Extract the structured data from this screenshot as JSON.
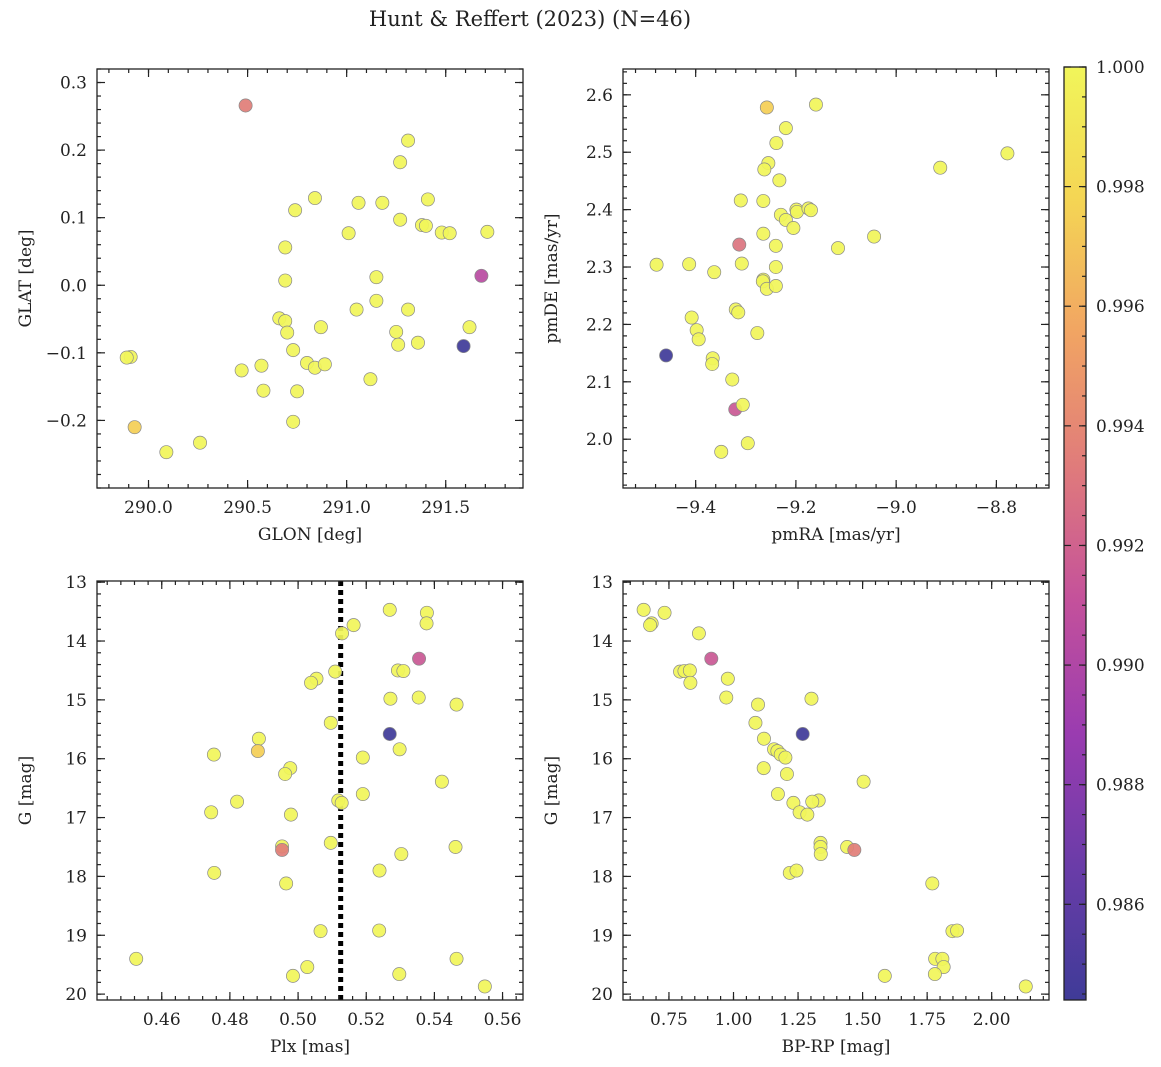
{
  "chart_data": {
    "type": "scatter",
    "title": "Hunt & Reffert (2023) (N=46)",
    "colorbar": {
      "range": [
        0.9844,
        1.0
      ],
      "ticks": [
        "1.000",
        "0.998",
        "0.996",
        "0.994",
        "0.992",
        "0.990",
        "0.988",
        "0.986"
      ],
      "tick_values": [
        1.0,
        0.998,
        0.996,
        0.994,
        0.992,
        0.99,
        0.988,
        0.986
      ],
      "colormap": "plasma",
      "colors": [
        "#3f3b98",
        "#6a3ca8",
        "#9a3cb0",
        "#c4519b",
        "#e07b7b",
        "#f1a463",
        "#f4d554",
        "#f1f55a"
      ]
    },
    "panels": [
      {
        "xlabel": "GLON [deg]",
        "ylabel": "GLAT [deg]",
        "xlim": [
          289.74,
          291.89
        ],
        "ylim": [
          -0.3,
          0.32
        ],
        "xticks": [
          290.0,
          290.5,
          291.0,
          291.5
        ],
        "xticklabels": [
          "290.0",
          "290.5",
          "291.0",
          "291.5"
        ],
        "yticks": [
          -0.2,
          -0.1,
          0.0,
          0.1,
          0.2,
          0.3
        ],
        "yticklabels": [
          "−0.2",
          "−0.1",
          "0.0",
          "0.1",
          "0.2",
          "0.3"
        ],
        "vline": null,
        "points": [
          [
            290.49,
            0.266,
            0.9935
          ],
          [
            289.93,
            -0.21,
            0.9975
          ],
          [
            289.91,
            -0.106,
            1.0
          ],
          [
            289.89,
            -0.107,
            1.0
          ],
          [
            290.09,
            -0.247,
            1.0
          ],
          [
            290.26,
            -0.233,
            1.0
          ],
          [
            290.47,
            -0.126,
            1.0
          ],
          [
            290.57,
            -0.119,
            1.0
          ],
          [
            290.58,
            -0.156,
            1.0
          ],
          [
            290.66,
            -0.049,
            1.0
          ],
          [
            290.69,
            -0.053,
            1.0
          ],
          [
            290.7,
            -0.07,
            1.0
          ],
          [
            290.69,
            0.056,
            1.0
          ],
          [
            290.69,
            0.007,
            1.0
          ],
          [
            290.74,
            0.111,
            1.0
          ],
          [
            290.73,
            -0.096,
            1.0
          ],
          [
            290.73,
            -0.202,
            1.0
          ],
          [
            290.75,
            -0.157,
            1.0
          ],
          [
            290.8,
            -0.115,
            1.0
          ],
          [
            290.84,
            0.129,
            1.0
          ],
          [
            290.84,
            -0.122,
            1.0
          ],
          [
            290.87,
            -0.062,
            1.0
          ],
          [
            290.89,
            -0.117,
            1.0
          ],
          [
            291.01,
            0.077,
            1.0
          ],
          [
            291.05,
            -0.036,
            1.0
          ],
          [
            291.06,
            0.122,
            1.0
          ],
          [
            291.12,
            -0.139,
            1.0
          ],
          [
            291.15,
            0.012,
            1.0
          ],
          [
            291.15,
            -0.023,
            1.0
          ],
          [
            291.18,
            0.122,
            1.0
          ],
          [
            291.25,
            -0.069,
            1.0
          ],
          [
            291.26,
            -0.088,
            1.0
          ],
          [
            291.27,
            0.182,
            1.0
          ],
          [
            291.27,
            0.097,
            1.0
          ],
          [
            291.31,
            0.214,
            1.0
          ],
          [
            291.31,
            -0.036,
            1.0
          ],
          [
            291.36,
            -0.085,
            1.0
          ],
          [
            291.38,
            0.089,
            1.0
          ],
          [
            291.41,
            0.127,
            1.0
          ],
          [
            291.4,
            0.088,
            1.0
          ],
          [
            291.48,
            0.078,
            1.0
          ],
          [
            291.52,
            0.077,
            1.0
          ],
          [
            291.59,
            -0.09,
            0.9845
          ],
          [
            291.62,
            -0.062,
            1.0
          ],
          [
            291.68,
            0.014,
            0.9905
          ],
          [
            291.71,
            0.079,
            1.0
          ]
        ]
      },
      {
        "xlabel": "pmRA [mas/yr]",
        "ylabel": "pmDE [mas/yr]",
        "xlim": [
          -9.545,
          -8.695
        ],
        "ylim": [
          1.915,
          2.645
        ],
        "xticks": [
          -9.4,
          -9.2,
          -9.0,
          -8.8
        ],
        "xticklabels": [
          "−9.4",
          "−9.2",
          "−9.0",
          "−8.8"
        ],
        "yticks": [
          2.0,
          2.1,
          2.2,
          2.3,
          2.4,
          2.5,
          2.6
        ],
        "yticklabels": [
          "2.0",
          "2.1",
          "2.2",
          "2.3",
          "2.4",
          "2.5",
          "2.6"
        ],
        "vline": null,
        "points": [
          [
            -9.258,
            2.578,
            0.9975
          ],
          [
            -9.16,
            2.583,
            1.0
          ],
          [
            -9.22,
            2.542,
            1.0
          ],
          [
            -9.239,
            2.516,
            1.0
          ],
          [
            -9.255,
            2.481,
            1.0
          ],
          [
            -9.263,
            2.47,
            1.0
          ],
          [
            -9.233,
            2.451,
            1.0
          ],
          [
            -8.912,
            2.473,
            1.0
          ],
          [
            -8.778,
            2.498,
            1.0
          ],
          [
            -9.31,
            2.416,
            1.0
          ],
          [
            -9.265,
            2.415,
            1.0
          ],
          [
            -9.23,
            2.391,
            1.0
          ],
          [
            -9.22,
            2.382,
            1.0
          ],
          [
            -9.199,
            2.4,
            1.0
          ],
          [
            -9.198,
            2.396,
            1.0
          ],
          [
            -9.175,
            2.402,
            1.0
          ],
          [
            -9.17,
            2.399,
            1.0
          ],
          [
            -9.205,
            2.368,
            1.0
          ],
          [
            -9.265,
            2.358,
            1.0
          ],
          [
            -9.24,
            2.337,
            1.0
          ],
          [
            -9.313,
            2.339,
            0.993
          ],
          [
            -9.116,
            2.333,
            1.0
          ],
          [
            -9.044,
            2.353,
            1.0
          ],
          [
            -9.478,
            2.304,
            1.0
          ],
          [
            -9.413,
            2.305,
            1.0
          ],
          [
            -9.363,
            2.291,
            1.0
          ],
          [
            -9.308,
            2.306,
            1.0
          ],
          [
            -9.24,
            2.3,
            1.0
          ],
          [
            -9.265,
            2.278,
            1.0
          ],
          [
            -9.266,
            2.275,
            1.0
          ],
          [
            -9.258,
            2.262,
            1.0
          ],
          [
            -9.24,
            2.267,
            1.0
          ],
          [
            -9.32,
            2.226,
            1.0
          ],
          [
            -9.315,
            2.221,
            1.0
          ],
          [
            -9.408,
            2.212,
            1.0
          ],
          [
            -9.398,
            2.19,
            1.0
          ],
          [
            -9.394,
            2.174,
            1.0
          ],
          [
            -9.277,
            2.185,
            1.0
          ],
          [
            -9.459,
            2.146,
            0.9845
          ],
          [
            -9.366,
            2.141,
            1.0
          ],
          [
            -9.367,
            2.131,
            1.0
          ],
          [
            -9.327,
            2.104,
            1.0
          ],
          [
            -9.321,
            2.052,
            0.9915
          ],
          [
            -9.306,
            2.06,
            1.0
          ],
          [
            -9.296,
            1.993,
            1.0
          ],
          [
            -9.349,
            1.978,
            1.0
          ]
        ]
      },
      {
        "xlabel": "Plx [mas]",
        "ylabel": "G [mag]",
        "xlim": [
          0.441,
          0.566
        ],
        "ylim": [
          20.1,
          12.98
        ],
        "xticks": [
          0.46,
          0.48,
          0.5,
          0.52,
          0.54,
          0.56
        ],
        "xticklabels": [
          "0.46",
          "0.48",
          "0.50",
          "0.52",
          "0.54",
          "0.56"
        ],
        "yticks": [
          13,
          14,
          15,
          16,
          17,
          18,
          19,
          20
        ],
        "yticklabels": [
          "13",
          "14",
          "15",
          "16",
          "17",
          "18",
          "19",
          "20"
        ],
        "vline": 0.5125,
        "points": [
          [
            0.5269,
            13.47,
            1.0
          ],
          [
            0.5378,
            13.52,
            1.0
          ],
          [
            0.5163,
            13.73,
            1.0
          ],
          [
            0.5377,
            13.7,
            1.0
          ],
          [
            0.5129,
            13.87,
            1.0
          ],
          [
            0.5355,
            14.3,
            0.9915
          ],
          [
            0.5293,
            14.5,
            1.0
          ],
          [
            0.5309,
            14.51,
            1.0
          ],
          [
            0.5109,
            14.52,
            1.0
          ],
          [
            0.5054,
            14.64,
            1.0
          ],
          [
            0.5038,
            14.71,
            1.0
          ],
          [
            0.5271,
            14.98,
            1.0
          ],
          [
            0.5354,
            14.96,
            1.0
          ],
          [
            0.5465,
            15.08,
            1.0
          ],
          [
            0.5096,
            15.39,
            1.0
          ],
          [
            0.5269,
            15.58,
            0.9845
          ],
          [
            0.4885,
            15.66,
            1.0
          ],
          [
            0.4882,
            15.87,
            0.9975
          ],
          [
            0.5298,
            15.84,
            1.0
          ],
          [
            0.4753,
            15.93,
            1.0
          ],
          [
            0.519,
            15.98,
            1.0
          ],
          [
            0.4977,
            16.16,
            1.0
          ],
          [
            0.4962,
            16.26,
            1.0
          ],
          [
            0.5422,
            16.39,
            1.0
          ],
          [
            0.519,
            16.6,
            1.0
          ],
          [
            0.5118,
            16.71,
            1.0
          ],
          [
            0.5128,
            16.75,
            1.0
          ],
          [
            0.4821,
            16.73,
            1.0
          ],
          [
            0.4745,
            16.91,
            1.0
          ],
          [
            0.4979,
            16.95,
            1.0
          ],
          [
            0.5096,
            17.43,
            1.0
          ],
          [
            0.4953,
            17.49,
            1.0
          ],
          [
            0.4953,
            17.55,
            0.9935
          ],
          [
            0.5462,
            17.5,
            1.0
          ],
          [
            0.5303,
            17.62,
            1.0
          ],
          [
            0.5239,
            17.9,
            1.0
          ],
          [
            0.4754,
            17.94,
            1.0
          ],
          [
            0.4965,
            18.12,
            1.0
          ],
          [
            0.5066,
            18.93,
            1.0
          ],
          [
            0.5238,
            18.92,
            1.0
          ],
          [
            0.4525,
            19.4,
            1.0
          ],
          [
            0.5465,
            19.4,
            1.0
          ],
          [
            0.5027,
            19.54,
            1.0
          ],
          [
            0.4985,
            19.69,
            1.0
          ],
          [
            0.5297,
            19.66,
            1.0
          ],
          [
            0.5548,
            19.87,
            1.0
          ]
        ]
      },
      {
        "xlabel": "BP-RP [mag]",
        "ylabel": "G [mag]",
        "xlim": [
          0.572,
          2.222
        ],
        "ylim": [
          20.1,
          12.98
        ],
        "xticks": [
          0.75,
          1.0,
          1.25,
          1.5,
          1.75,
          2.0
        ],
        "xticklabels": [
          "0.75",
          "1.00",
          "1.25",
          "1.50",
          "1.75",
          "2.00"
        ],
        "yticks": [
          13,
          14,
          15,
          16,
          17,
          18,
          19,
          20
        ],
        "yticklabels": [
          "13",
          "14",
          "15",
          "16",
          "17",
          "18",
          "19",
          "20"
        ],
        "vline": null,
        "points": [
          [
            0.652,
            13.47,
            1.0
          ],
          [
            0.733,
            13.52,
            1.0
          ],
          [
            0.683,
            13.7,
            1.0
          ],
          [
            0.677,
            13.73,
            1.0
          ],
          [
            0.866,
            13.87,
            1.0
          ],
          [
            0.914,
            14.3,
            0.9915
          ],
          [
            0.793,
            14.52,
            1.0
          ],
          [
            0.81,
            14.51,
            1.0
          ],
          [
            0.831,
            14.5,
            1.0
          ],
          [
            0.978,
            14.64,
            1.0
          ],
          [
            0.833,
            14.71,
            1.0
          ],
          [
            0.972,
            14.96,
            1.0
          ],
          [
            1.302,
            14.98,
            1.0
          ],
          [
            1.095,
            15.08,
            1.0
          ],
          [
            1.085,
            15.39,
            1.0
          ],
          [
            1.268,
            15.58,
            0.9845
          ],
          [
            1.118,
            15.66,
            1.0
          ],
          [
            1.157,
            15.84,
            1.0
          ],
          [
            1.17,
            15.87,
            1.0
          ],
          [
            1.183,
            15.93,
            1.0
          ],
          [
            1.201,
            15.98,
            1.0
          ],
          [
            1.117,
            16.16,
            1.0
          ],
          [
            1.207,
            16.26,
            1.0
          ],
          [
            1.504,
            16.39,
            1.0
          ],
          [
            1.172,
            16.6,
            1.0
          ],
          [
            1.33,
            16.71,
            1.0
          ],
          [
            1.305,
            16.73,
            1.0
          ],
          [
            1.232,
            16.75,
            1.0
          ],
          [
            1.256,
            16.91,
            1.0
          ],
          [
            1.286,
            16.95,
            1.0
          ],
          [
            1.337,
            17.43,
            1.0
          ],
          [
            1.337,
            17.5,
            1.0
          ],
          [
            1.44,
            17.5,
            1.0
          ],
          [
            1.468,
            17.55,
            0.9935
          ],
          [
            1.338,
            17.62,
            1.0
          ],
          [
            1.218,
            17.94,
            1.0
          ],
          [
            1.244,
            17.9,
            1.0
          ],
          [
            1.77,
            18.12,
            1.0
          ],
          [
            1.848,
            18.93,
            1.0
          ],
          [
            1.866,
            18.92,
            1.0
          ],
          [
            1.781,
            19.4,
            1.0
          ],
          [
            1.809,
            19.4,
            1.0
          ],
          [
            1.814,
            19.54,
            1.0
          ],
          [
            1.586,
            19.69,
            1.0
          ],
          [
            1.78,
            19.66,
            1.0
          ],
          [
            2.132,
            19.87,
            1.0
          ]
        ]
      }
    ]
  }
}
